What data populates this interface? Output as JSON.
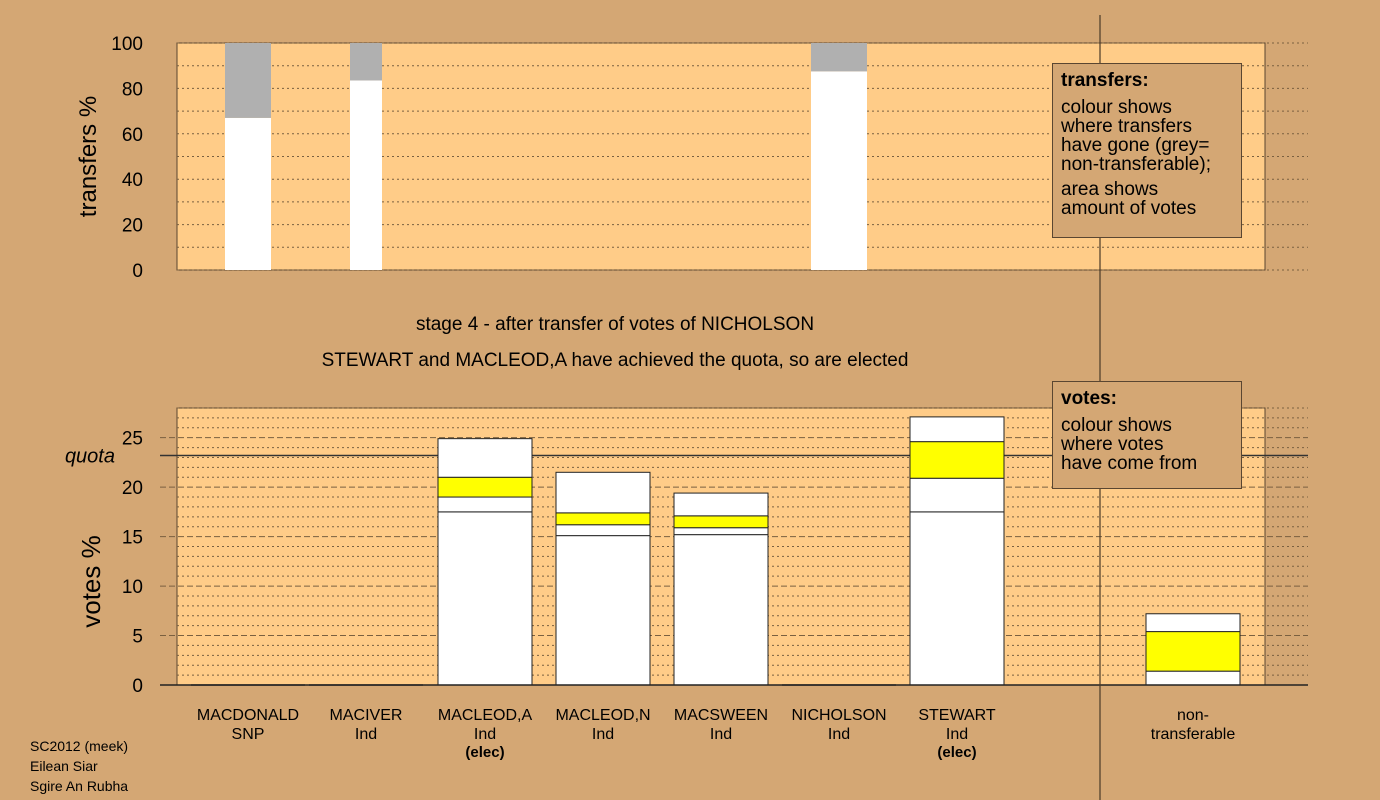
{
  "chart_data": [
    {
      "type": "bar",
      "stacked": true,
      "ylabel": "transfers %",
      "ylim": [
        0,
        100
      ],
      "yticks": [
        0,
        20,
        40,
        60,
        80,
        100
      ],
      "grid": "dotted",
      "series": [
        {
          "color": "#FFFFFF",
          "values": [
            67,
            83.5,
            0,
            0,
            0,
            87.5,
            0,
            0
          ]
        },
        {
          "color": "#B0B0B0",
          "values": [
            33,
            16.5,
            0,
            0,
            0,
            12.5,
            0,
            0
          ]
        }
      ]
    },
    {
      "type": "bar",
      "stacked": true,
      "ylabel": "votes %",
      "ylim": [
        0,
        28
      ],
      "yticks": [
        0,
        5,
        10,
        15,
        20,
        25
      ],
      "quota_label": "quota",
      "quota": 23.2,
      "grid": "dashed",
      "series": [
        {
          "color": "#FFFFFF",
          "values": [
            0,
            0,
            17.5,
            15.1,
            15.2,
            0,
            17.5,
            1.4
          ]
        },
        {
          "color": "#FFFFFF",
          "values": [
            0,
            0,
            1.5,
            1.1,
            0.7,
            0,
            3.4,
            0
          ]
        },
        {
          "color": "#FFFF00",
          "values": [
            0,
            0,
            2.0,
            1.2,
            1.2,
            0,
            3.7,
            4.0
          ]
        },
        {
          "color": "#FFFFFF",
          "values": [
            0,
            0,
            3.9,
            4.1,
            2.3,
            0,
            2.5,
            1.8
          ]
        }
      ]
    }
  ],
  "candidates": [
    {
      "name": "MACDONALD",
      "party": "SNP",
      "note": ""
    },
    {
      "name": "MACIVER",
      "party": "Ind",
      "note": ""
    },
    {
      "name": "MACLEOD,A",
      "party": "Ind",
      "note": "(elec)"
    },
    {
      "name": "MACLEOD,N",
      "party": "Ind",
      "note": ""
    },
    {
      "name": "MACSWEEN",
      "party": "Ind",
      "note": ""
    },
    {
      "name": "NICHOLSON",
      "party": "Ind",
      "note": ""
    },
    {
      "name": "STEWART",
      "party": "Ind",
      "note": "(elec)"
    },
    {
      "name": "non-",
      "party": "transferable",
      "note": ""
    }
  ],
  "stage": {
    "line1": "stage 4 - after transfer of votes of NICHOLSON",
    "line2": "STEWART and MACLEOD,A have achieved the quota, so are elected"
  },
  "legend_transfers": {
    "title": "transfers:",
    "text1_lines": [
      "colour shows",
      "where transfers",
      "have gone (grey=",
      "non-transferable);"
    ],
    "text2_lines": [
      "area shows",
      "amount of votes"
    ]
  },
  "legend_votes": {
    "title": "votes:",
    "text1_lines": [
      "colour shows",
      "where votes",
      "have come from"
    ]
  },
  "footer": {
    "line1": "SC2012 (meek)",
    "line2": "Eilean Siar",
    "line3": "Sgire An Rubha"
  },
  "colors": {
    "background": "#D4A774",
    "plot_area": "#FFCC88",
    "non_transferable": "#B0B0B0",
    "transfer_in": "#FFFF00"
  }
}
